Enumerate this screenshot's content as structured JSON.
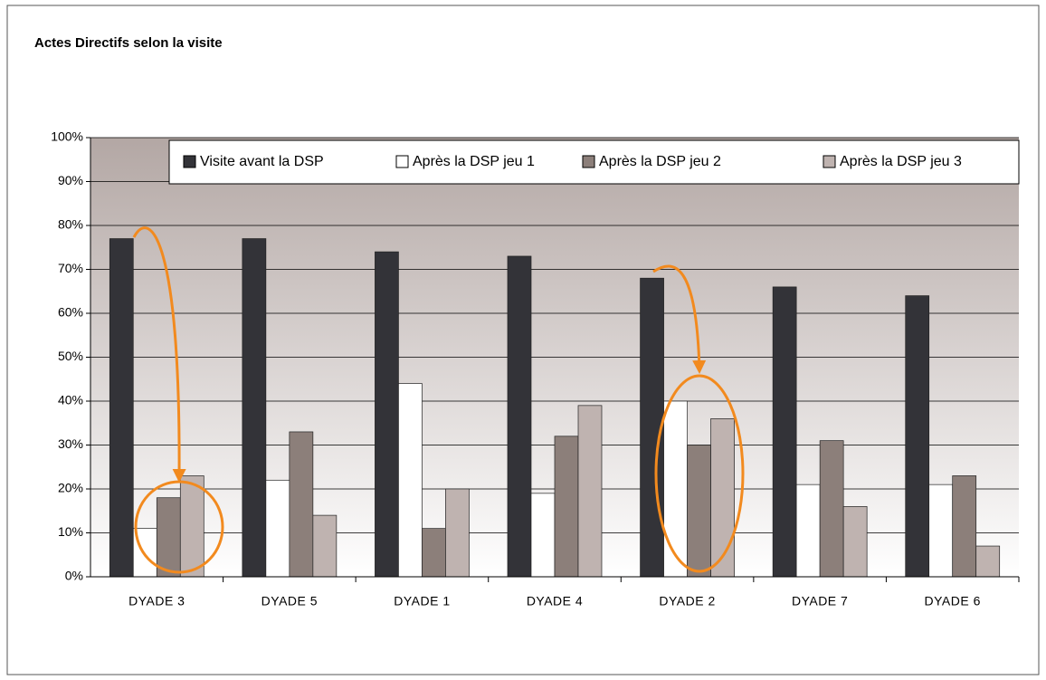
{
  "chart_data": {
    "type": "bar",
    "title": "Actes Directifs selon la visite",
    "categories": [
      "DYADE 3",
      "DYADE 5",
      "DYADE 1",
      "DYADE 4",
      "DYADE 2",
      "DYADE 7",
      "DYADE 6"
    ],
    "series": [
      {
        "name": "Visite avant la DSP",
        "color": "#333338",
        "values": [
          77,
          77,
          74,
          73,
          68,
          66,
          64
        ]
      },
      {
        "name": "Après la DSP jeu 1",
        "color": "#ffffff",
        "values": [
          11,
          22,
          44,
          19,
          40,
          21,
          21
        ]
      },
      {
        "name": "Après la DSP jeu 2",
        "color": "#8c7f7a",
        "values": [
          18,
          33,
          11,
          32,
          30,
          31,
          23
        ]
      },
      {
        "name": "Après la DSP jeu 3",
        "color": "#bfb3b0",
        "values": [
          23,
          14,
          20,
          39,
          36,
          16,
          7
        ]
      }
    ],
    "ylim": [
      0,
      100
    ],
    "yticks": [
      {
        "value": 0,
        "label": "0%"
      },
      {
        "value": 10,
        "label": "10%"
      },
      {
        "value": 20,
        "label": "20%"
      },
      {
        "value": 30,
        "label": "30%"
      },
      {
        "value": 40,
        "label": "40%"
      },
      {
        "value": 50,
        "label": "50%"
      },
      {
        "value": 60,
        "label": "60%"
      },
      {
        "value": 70,
        "label": "70%"
      },
      {
        "value": 80,
        "label": "80%"
      },
      {
        "value": 90,
        "label": "90%"
      },
      {
        "value": 100,
        "label": "100%"
      }
    ],
    "grid": true
  }
}
